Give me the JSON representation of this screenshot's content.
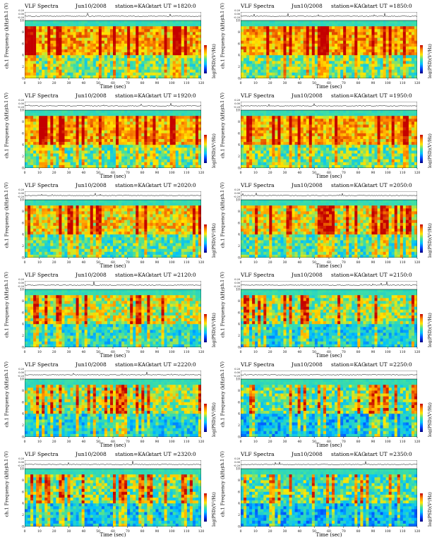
{
  "chart_data": {
    "type": "heatmap",
    "common": {
      "title_left": "VLF Spectra",
      "station": "station=KAG",
      "signal_ylabel": "ch.1 (V)",
      "signal_yticks": [
        "0.20",
        "0.00",
        "-0.20"
      ],
      "freq_ylabel": "Frequency (kHz)",
      "freq_ylabel_prefix": "ch.1",
      "freq_yticks": [
        0,
        2,
        4,
        6,
        8,
        10
      ],
      "ylim": [
        0,
        10
      ],
      "xlabel": "Time (sec)",
      "xticks": [
        0,
        10,
        20,
        30,
        40,
        50,
        60,
        70,
        80,
        90,
        100,
        110,
        120
      ],
      "xlim": [
        0,
        120
      ],
      "colorbar_label": "log(PSD)(V²/Hz)",
      "colorbar_ticks": [
        "-",
        "-"
      ]
    },
    "panels": [
      {
        "date": "Jun10/2008",
        "start_ut": "start UT =1820:0",
        "intensity": 0.85
      },
      {
        "date": "Jun10/2008",
        "start_ut": "start UT =1850:0",
        "intensity": 0.85
      },
      {
        "date": "Jun10/2008",
        "start_ut": "start UT =1920:0",
        "intensity": 0.82
      },
      {
        "date": "Jun10/2008",
        "start_ut": "start UT =1950:0",
        "intensity": 0.82
      },
      {
        "date": "Jun10/2008",
        "start_ut": "start UT =2020:0",
        "intensity": 0.72
      },
      {
        "date": "Jun10/2008",
        "start_ut": "start UT =2050:0",
        "intensity": 0.65
      },
      {
        "date": "Jun10/2008",
        "start_ut": "start UT =2120:0",
        "intensity": 0.55
      },
      {
        "date": "Jun10/2008",
        "start_ut": "start UT =2150:0",
        "intensity": 0.45
      },
      {
        "date": "Jun10/2008",
        "start_ut": "start UT =2220:0",
        "intensity": 0.45
      },
      {
        "date": "Jun10/2008",
        "start_ut": "start UT =2250:0",
        "intensity": 0.3
      },
      {
        "date": "Jun10/2008",
        "start_ut": "start UT =2320:0",
        "intensity": 0.35
      },
      {
        "date": "Jun10/2008",
        "start_ut": "start UT =2350:0",
        "intensity": 0.25
      }
    ]
  }
}
